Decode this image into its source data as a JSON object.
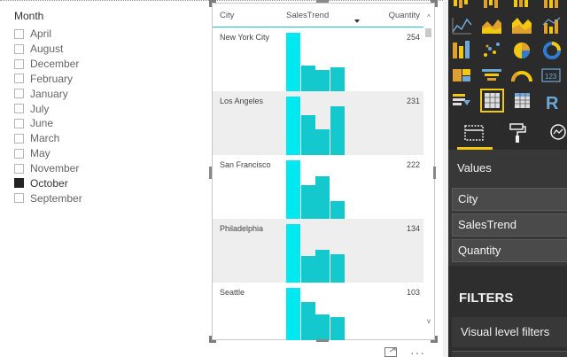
{
  "slicer": {
    "title": "Month",
    "items": [
      {
        "label": "April",
        "checked": false
      },
      {
        "label": "August",
        "checked": false
      },
      {
        "label": "December",
        "checked": false
      },
      {
        "label": "February",
        "checked": false
      },
      {
        "label": "January",
        "checked": false
      },
      {
        "label": "July",
        "checked": false
      },
      {
        "label": "June",
        "checked": false
      },
      {
        "label": "March",
        "checked": false
      },
      {
        "label": "May",
        "checked": false
      },
      {
        "label": "November",
        "checked": false
      },
      {
        "label": "October",
        "checked": true
      },
      {
        "label": "September",
        "checked": false
      }
    ]
  },
  "table": {
    "headers": {
      "city": "City",
      "trend": "SalesTrend",
      "quantity": "Quantity"
    },
    "sort_column": "Quantity",
    "accent_color": "#14c9cd",
    "highlight_color": "#00e8f0",
    "rows": [
      {
        "city": "New York City",
        "quantity": "254",
        "trend": [
          1.0,
          0.44,
          0.37,
          0.41
        ]
      },
      {
        "city": "Los Angeles",
        "quantity": "231",
        "trend": [
          1.0,
          0.68,
          0.44,
          0.83
        ]
      },
      {
        "city": "San Francisco",
        "quantity": "222",
        "trend": [
          1.0,
          0.57,
          0.73,
          0.3
        ]
      },
      {
        "city": "Philadelphia",
        "quantity": "134",
        "trend": [
          1.0,
          0.46,
          0.56,
          0.48
        ]
      },
      {
        "city": "Seattle",
        "quantity": "103",
        "trend": [
          1.0,
          0.76,
          0.54,
          0.5
        ]
      }
    ]
  },
  "visual_actions": {
    "focus_icon": "focus-mode-icon",
    "more_icon": "more-options-icon",
    "more_label": "···"
  },
  "panel": {
    "values_label": "Values",
    "fields": [
      "City",
      "SalesTrend",
      "Quantity"
    ],
    "filters_title": "FILTERS",
    "visual_level_filters": "Visual level filters",
    "background_color": "#2e2e2e",
    "field_color": "#4a4a4a",
    "selected_viz_border": "#f2c811"
  }
}
